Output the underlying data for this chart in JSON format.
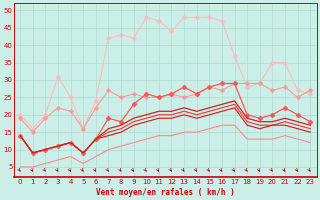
{
  "background_color": "#cceee8",
  "grid_color": "#aaddcc",
  "xlabel": "Vent moyen/en rafales ( km/h )",
  "xlim": [
    -0.5,
    23.5
  ],
  "ylim": [
    2,
    52
  ],
  "yticks": [
    5,
    10,
    15,
    20,
    25,
    30,
    35,
    40,
    45,
    50
  ],
  "xticks": [
    0,
    1,
    2,
    3,
    4,
    5,
    6,
    7,
    8,
    9,
    10,
    11,
    12,
    13,
    14,
    15,
    16,
    17,
    18,
    19,
    20,
    21,
    22,
    23
  ],
  "lines": [
    {
      "x": [
        0,
        1,
        2,
        3,
        4,
        5,
        6,
        7,
        8,
        9,
        10,
        11,
        12,
        13,
        14,
        15,
        16,
        17,
        18,
        19,
        20,
        21,
        22,
        23
      ],
      "y": [
        19,
        15,
        19,
        22,
        21,
        16,
        22,
        27,
        25,
        26,
        25,
        25,
        26,
        25,
        26,
        28,
        27,
        29,
        29,
        29,
        27,
        28,
        25,
        27
      ],
      "color": "#ff9999",
      "lw": 0.8,
      "marker": "D",
      "ms": 1.8,
      "zorder": 3
    },
    {
      "x": [
        0,
        1,
        2,
        3,
        4,
        5,
        6,
        7,
        8,
        9,
        10,
        11,
        12,
        13,
        14,
        15,
        16,
        17,
        18,
        19,
        20,
        21,
        22,
        23
      ],
      "y": [
        20,
        16,
        20,
        31,
        25,
        16,
        24,
        42,
        43,
        42,
        48,
        47,
        44,
        48,
        48,
        48,
        47,
        37,
        28,
        29,
        35,
        35,
        27,
        26
      ],
      "color": "#ffbbbb",
      "lw": 0.8,
      "marker": "D",
      "ms": 1.8,
      "zorder": 2
    },
    {
      "x": [
        0,
        1,
        2,
        3,
        4,
        5,
        6,
        7,
        8,
        9,
        10,
        11,
        12,
        13,
        14,
        15,
        16,
        17,
        18,
        19,
        20,
        21,
        22,
        23
      ],
      "y": [
        14,
        9,
        10,
        11,
        12,
        9,
        13,
        19,
        18,
        23,
        26,
        25,
        26,
        28,
        26,
        28,
        29,
        29,
        20,
        19,
        20,
        22,
        20,
        18
      ],
      "color": "#ff5555",
      "lw": 0.9,
      "marker": "P",
      "ms": 2.5,
      "zorder": 4
    },
    {
      "x": [
        0,
        1,
        2,
        3,
        4,
        5,
        6,
        7,
        8,
        9,
        10,
        11,
        12,
        13,
        14,
        15,
        16,
        17,
        18,
        19,
        20,
        21,
        22,
        23
      ],
      "y": [
        14,
        9,
        10,
        11,
        12,
        9,
        13,
        16,
        17,
        19,
        20,
        21,
        21,
        22,
        21,
        22,
        23,
        24,
        19,
        18,
        18,
        19,
        18,
        17
      ],
      "color": "#cc2222",
      "lw": 0.9,
      "marker": null,
      "ms": 0,
      "zorder": 4
    },
    {
      "x": [
        0,
        1,
        2,
        3,
        4,
        5,
        6,
        7,
        8,
        9,
        10,
        11,
        12,
        13,
        14,
        15,
        16,
        17,
        18,
        19,
        20,
        21,
        22,
        23
      ],
      "y": [
        14,
        9,
        10,
        11,
        12,
        9,
        13,
        15,
        16,
        18,
        19,
        20,
        20,
        21,
        20,
        21,
        22,
        23,
        18,
        17,
        17,
        18,
        17,
        16
      ],
      "color": "#ee3333",
      "lw": 0.8,
      "marker": null,
      "ms": 0,
      "zorder": 3
    },
    {
      "x": [
        0,
        1,
        2,
        3,
        4,
        5,
        6,
        7,
        8,
        9,
        10,
        11,
        12,
        13,
        14,
        15,
        16,
        17,
        18,
        19,
        20,
        21,
        22,
        23
      ],
      "y": [
        14,
        9,
        10,
        11,
        12,
        9,
        13,
        14,
        15,
        17,
        18,
        19,
        19,
        20,
        19,
        20,
        21,
        22,
        17,
        16,
        17,
        17,
        16,
        15
      ],
      "color": "#dd1111",
      "lw": 0.8,
      "marker": null,
      "ms": 0,
      "zorder": 3
    },
    {
      "x": [
        0,
        1,
        2,
        3,
        4,
        5,
        6,
        7,
        8,
        9,
        10,
        11,
        12,
        13,
        14,
        15,
        16,
        17,
        18,
        19,
        20,
        21,
        22,
        23
      ],
      "y": [
        5,
        5,
        6,
        7,
        8,
        6,
        8,
        10,
        11,
        12,
        13,
        14,
        14,
        15,
        15,
        16,
        17,
        17,
        13,
        13,
        13,
        14,
        13,
        12
      ],
      "color": "#ff8888",
      "lw": 0.8,
      "marker": null,
      "ms": 0,
      "zorder": 2
    }
  ],
  "arrow_color": "#cc0000",
  "xlabel_color": "#cc0000",
  "tick_color": "#cc0000",
  "axis_label_fontsize": 5.5,
  "tick_fontsize": 5.0
}
